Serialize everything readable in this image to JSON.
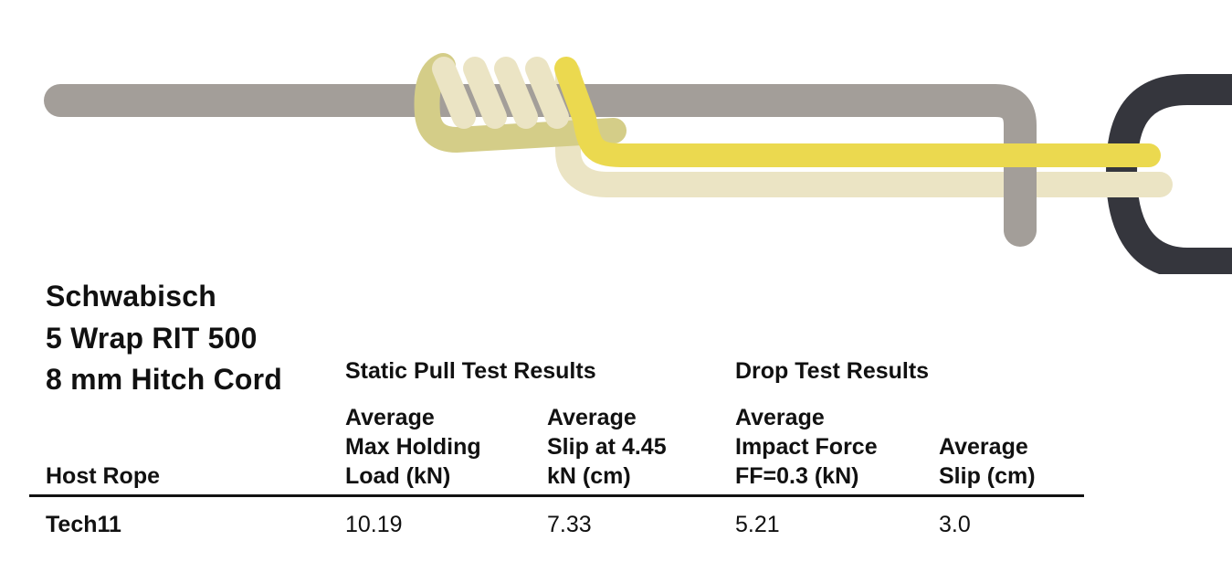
{
  "diagram": {
    "title_lines": [
      "Schwabisch",
      "5 Wrap RIT 500",
      "8 mm Hitch Cord"
    ],
    "colors": {
      "host_rope": "#a39e99",
      "hitch_cord_light": "#ebe4c4",
      "hitch_cord_olive": "#d4cd88",
      "hitch_cord_yellow": "#ebd94f",
      "carabiner": "#35363d"
    }
  },
  "table": {
    "group_headers": {
      "static": "Static Pull Test Results",
      "drop": "Drop Test Results"
    },
    "columns": [
      [
        "Host Rope"
      ],
      [
        "Average",
        "Max Holding",
        "Load (kN)"
      ],
      [
        "Average",
        "Slip at 4.45",
        "kN (cm)"
      ],
      [
        "Average",
        "Impact Force",
        "FF=0.3 (kN)"
      ],
      [
        "Average",
        "Slip (cm)"
      ]
    ],
    "rows": [
      {
        "host_rope": "Tech11",
        "max_holding_load": "10.19",
        "slip_static": "7.33",
        "impact_force": "5.21",
        "slip_drop": "3.0"
      }
    ]
  }
}
